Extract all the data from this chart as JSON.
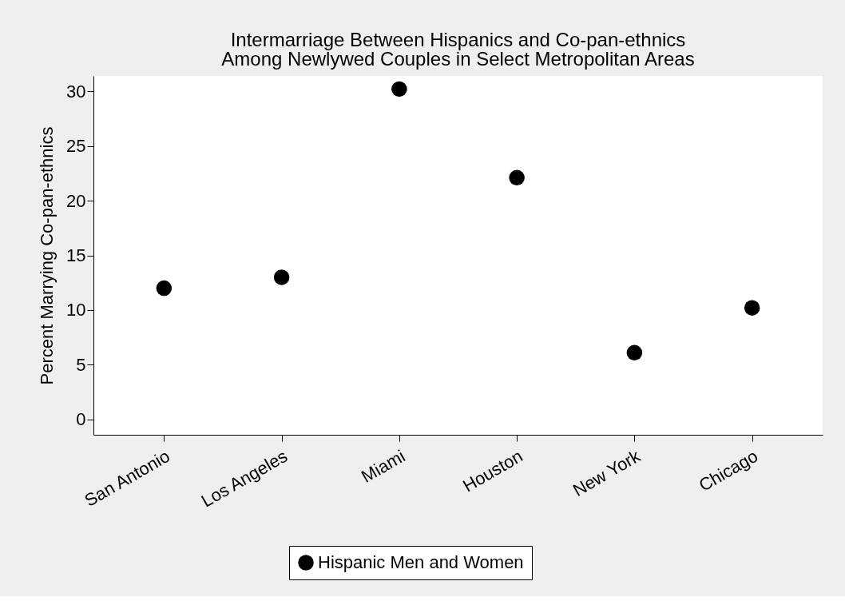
{
  "chart_data": {
    "type": "scatter",
    "title": "Intermarriage Between Hispanics and Co-pan-ethnics\nAmong Newlywed Couples in Select Metropolitan Areas",
    "ylabel": "Percent Marrying Co-pan-ethnics",
    "categories": [
      "San Antonio",
      "Los Angeles",
      "Miami",
      "Houston",
      "New York",
      "Chicago"
    ],
    "series": [
      {
        "name": "Hispanic Men and Women",
        "color": "#000000",
        "values": [
          12.0,
          13.0,
          30.2,
          22.1,
          6.1,
          10.2
        ]
      }
    ],
    "ylim": [
      -1.4,
      31.4
    ],
    "yticks": [
      0,
      5,
      10,
      15,
      20,
      25,
      30
    ],
    "marker": "circle",
    "legend": "bottom",
    "grid": false
  }
}
